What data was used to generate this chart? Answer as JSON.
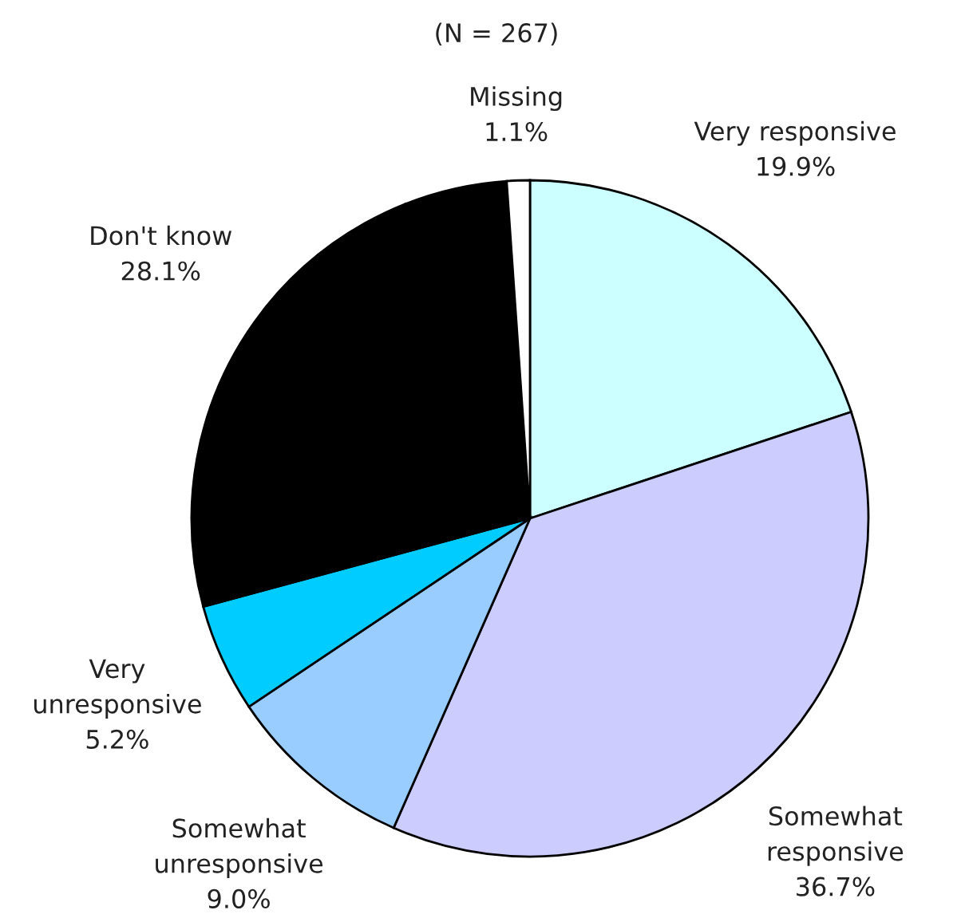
{
  "chart_data": {
    "type": "pie",
    "subtitle": "(N = 267)",
    "categories": [
      "Very responsive",
      "Somewhat\nresponsive",
      "Somewhat\nunresponsive",
      "Very\nunresponsive",
      "Don't know",
      "Missing"
    ],
    "values": [
      19.9,
      36.7,
      9.0,
      5.2,
      28.1,
      1.1
    ],
    "colors": [
      "#ccffff",
      "#ccccff",
      "#99ccff",
      "#00ccff",
      "#000000",
      "#ffffff"
    ],
    "value_labels": [
      "19.9%",
      "36.7%",
      "9.0%",
      "5.2%",
      "28.1%",
      "1.1%"
    ]
  }
}
